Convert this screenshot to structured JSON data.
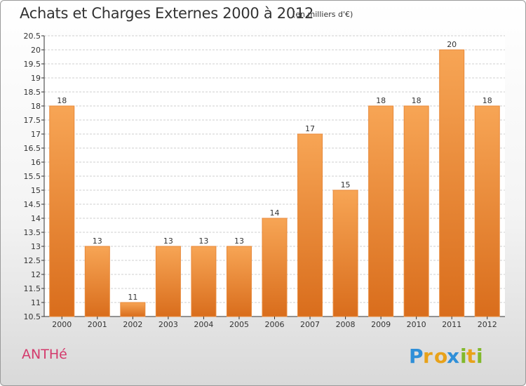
{
  "title": "Achats et Charges Externes 2000 à 2012",
  "unit": "(en milliers d'€)",
  "commune": "ANTHé",
  "logo": {
    "name": "Proxiti",
    "letters": [
      {
        "ch": "P",
        "color": "#2f8fd8"
      },
      {
        "ch": "r",
        "color": "#e8a21a"
      },
      {
        "ch": "o",
        "color": "#e8a21a"
      },
      {
        "ch": "x",
        "color": "#2f8fd8"
      },
      {
        "ch": "i",
        "color": "#82b92c"
      },
      {
        "ch": "t",
        "color": "#e8a21a"
      },
      {
        "ch": "i",
        "color": "#82b92c"
      }
    ]
  },
  "colors": {
    "bar_top": "#f7a555",
    "bar_bottom": "#d96d1c",
    "grid": "#cfcfcf",
    "axis": "#333333"
  },
  "chart_data": {
    "type": "bar",
    "title": "Achats et Charges Externes 2000 à 2012",
    "categories": [
      "2000",
      "2001",
      "2002",
      "2003",
      "2004",
      "2005",
      "2006",
      "2007",
      "2008",
      "2009",
      "2010",
      "2011",
      "2012"
    ],
    "values": [
      18,
      13,
      11,
      13,
      13,
      13,
      14,
      17,
      15,
      18,
      18,
      20,
      18
    ],
    "ylim": [
      10.5,
      20.5
    ],
    "yticks": [
      "10.5",
      "11",
      "11.5",
      "12",
      "12.5",
      "13",
      "13.5",
      "14",
      "14.5",
      "15",
      "15.5",
      "16",
      "16.5",
      "17",
      "17.5",
      "18",
      "18.5",
      "19",
      "19.5",
      "20",
      "20.5"
    ],
    "grid": true,
    "legend": "none"
  }
}
